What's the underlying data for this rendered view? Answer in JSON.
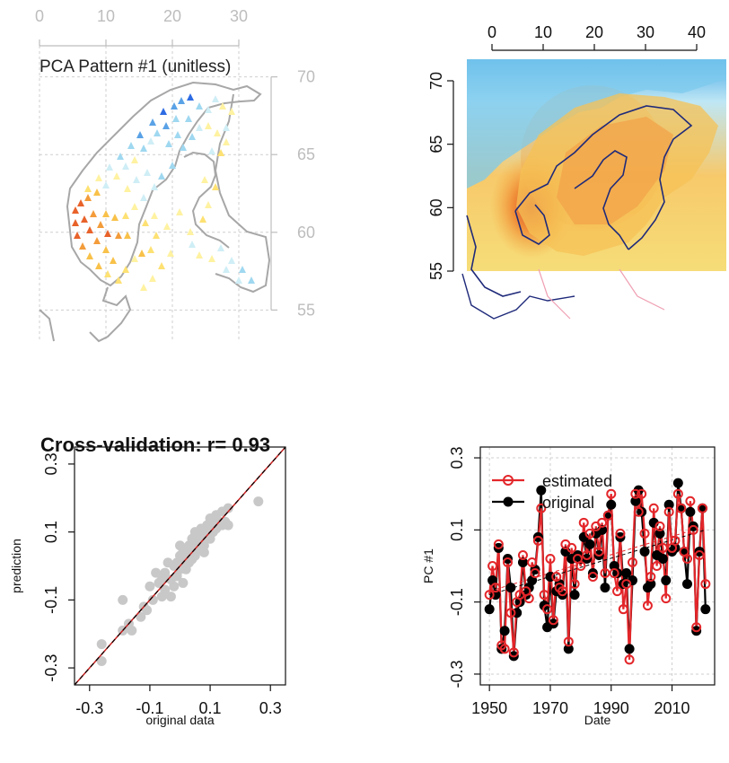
{
  "chart_data": [
    {
      "panel": "top-left",
      "type": "scatter",
      "title": "PCA Pattern #1 (unitless)",
      "x_ticks": [
        "0",
        "10",
        "20",
        "30"
      ],
      "y_ticks": [
        "55",
        "60",
        "65",
        "70"
      ],
      "xlim": [
        0,
        30
      ],
      "ylim": [
        53,
        72
      ],
      "legend": "none",
      "grid": true
    },
    {
      "panel": "top-right",
      "type": "heatmap",
      "x_ticks": [
        "0",
        "10",
        "20",
        "30",
        "40"
      ],
      "y_ticks": [
        "55",
        "60",
        "65",
        "70"
      ],
      "xlim": [
        -5,
        45
      ],
      "ylim": [
        53,
        72
      ],
      "grid": false
    },
    {
      "panel": "bottom-left",
      "type": "scatter",
      "title": "Cross-validation: r= 0.93",
      "xlabel": "original data",
      "ylabel": "prediction",
      "x_ticks": [
        "-0.3",
        "-0.1",
        "0.1",
        "0.3"
      ],
      "y_ticks": [
        "-0.3",
        "-0.1",
        "0.1",
        "0.3"
      ],
      "xlim": [
        -0.35,
        0.35
      ],
      "ylim": [
        -0.35,
        0.35
      ],
      "points": [
        [
          -0.26,
          -0.28
        ],
        [
          -0.26,
          -0.23
        ],
        [
          -0.19,
          -0.19
        ],
        [
          -0.19,
          -0.1
        ],
        [
          -0.17,
          -0.17
        ],
        [
          -0.16,
          -0.19
        ],
        [
          -0.13,
          -0.15
        ],
        [
          -0.12,
          -0.12
        ],
        [
          -0.11,
          -0.13
        ],
        [
          -0.09,
          -0.1
        ],
        [
          -0.08,
          -0.02
        ],
        [
          -0.06,
          -0.09
        ],
        [
          -0.06,
          -0.04
        ],
        [
          -0.05,
          -0.07
        ],
        [
          -0.05,
          -0.02
        ],
        [
          -0.03,
          -0.04
        ],
        [
          -0.03,
          -0.09
        ],
        [
          -0.02,
          0.0
        ],
        [
          -0.02,
          -0.06
        ],
        [
          -0.01,
          0.01
        ],
        [
          -0.01,
          -0.03
        ],
        [
          0.0,
          0.03
        ],
        [
          0.0,
          -0.01
        ],
        [
          0.01,
          0.02
        ],
        [
          0.01,
          0.05
        ],
        [
          0.02,
          0.01
        ],
        [
          0.02,
          -0.01
        ],
        [
          0.03,
          0.04
        ],
        [
          0.03,
          0.06
        ],
        [
          0.04,
          0.02
        ],
        [
          0.04,
          0.08
        ],
        [
          0.05,
          0.06
        ],
        [
          0.05,
          0.03
        ],
        [
          0.06,
          0.09
        ],
        [
          0.06,
          0.05
        ],
        [
          0.07,
          0.08
        ],
        [
          0.07,
          0.11
        ],
        [
          0.08,
          0.06
        ],
        [
          0.08,
          0.1
        ],
        [
          0.09,
          0.09
        ],
        [
          0.09,
          0.12
        ],
        [
          0.1,
          0.08
        ],
        [
          0.1,
          0.14
        ],
        [
          0.11,
          0.12
        ],
        [
          0.11,
          0.1
        ],
        [
          0.12,
          0.11
        ],
        [
          0.12,
          0.15
        ],
        [
          0.13,
          0.13
        ],
        [
          0.14,
          0.12
        ],
        [
          0.14,
          0.16
        ],
        [
          0.15,
          0.13
        ],
        [
          0.16,
          0.17
        ],
        [
          0.16,
          0.12
        ],
        [
          0.03,
          0.01
        ],
        [
          -0.04,
          0.01
        ],
        [
          -0.07,
          -0.05
        ],
        [
          0.0,
          0.06
        ],
        [
          0.05,
          0.1
        ],
        [
          -0.1,
          -0.06
        ],
        [
          0.01,
          -0.05
        ],
        [
          0.08,
          0.04
        ],
        [
          0.26,
          0.19
        ]
      ],
      "reference_line": "y = x",
      "grid": false
    },
    {
      "panel": "bottom-right",
      "type": "line",
      "xlabel": "Date",
      "ylabel": "PC #1",
      "x_ticks": [
        "1950",
        "1970",
        "1990",
        "2010"
      ],
      "y_ticks": [
        "-0.3",
        "-0.1",
        "0.1",
        "0.3"
      ],
      "xlim": [
        1947,
        2024
      ],
      "ylim": [
        -0.33,
        0.33
      ],
      "legend": "top-left",
      "x": [
        1950,
        1951,
        1952,
        1953,
        1954,
        1955,
        1956,
        1957,
        1958,
        1959,
        1960,
        1961,
        1962,
        1963,
        1964,
        1965,
        1966,
        1967,
        1968,
        1969,
        1970,
        1971,
        1972,
        1973,
        1974,
        1975,
        1976,
        1977,
        1978,
        1979,
        1980,
        1981,
        1982,
        1983,
        1984,
        1985,
        1986,
        1987,
        1988,
        1989,
        1990,
        1991,
        1992,
        1993,
        1994,
        1995,
        1996,
        1997,
        1998,
        1999,
        2000,
        2001,
        2002,
        2003,
        2004,
        2005,
        2006,
        2007,
        2008,
        2009,
        2010,
        2011,
        2012,
        2013,
        2014,
        2015,
        2016,
        2017,
        2018,
        2019,
        2020,
        2021
      ],
      "series": [
        {
          "name": "estimated",
          "values": [
            -0.08,
            0.0,
            -0.06,
            0.06,
            -0.22,
            -0.23,
            0.01,
            -0.13,
            -0.24,
            -0.1,
            -0.08,
            0.03,
            -0.07,
            -0.09,
            0.01,
            -0.02,
            0.07,
            0.16,
            -0.08,
            -0.12,
            0.02,
            -0.15,
            -0.03,
            -0.06,
            -0.07,
            0.06,
            -0.21,
            0.05,
            -0.05,
            0.02,
            0.0,
            0.12,
            0.03,
            0.09,
            -0.03,
            0.11,
            0.04,
            0.12,
            -0.02,
            0.14,
            0.2,
            -0.02,
            -0.07,
            0.09,
            -0.12,
            -0.05,
            -0.26,
            0.01,
            0.2,
            0.15,
            0.2,
            0.09,
            -0.11,
            -0.03,
            0.16,
            0.0,
            0.11,
            0.05,
            -0.09,
            0.15,
            0.05,
            0.07,
            0.2,
            0.16,
            0.04,
            0.02,
            0.18,
            0.1,
            -0.17,
            0.03,
            0.16,
            -0.05
          ]
        },
        {
          "name": "original",
          "values": [
            -0.12,
            -0.04,
            -0.08,
            0.05,
            -0.23,
            -0.18,
            0.02,
            -0.06,
            -0.25,
            -0.13,
            -0.1,
            0.01,
            -0.08,
            -0.06,
            -0.04,
            -0.01,
            0.08,
            0.21,
            -0.11,
            -0.17,
            -0.03,
            -0.16,
            -0.07,
            -0.05,
            -0.08,
            0.04,
            -0.23,
            0.02,
            -0.08,
            0.03,
            0.02,
            0.08,
            0.02,
            0.06,
            -0.02,
            0.09,
            0.03,
            0.1,
            -0.06,
            0.14,
            0.17,
            0.0,
            -0.02,
            0.08,
            -0.05,
            -0.02,
            -0.23,
            -0.04,
            0.18,
            0.21,
            0.15,
            0.04,
            -0.06,
            -0.05,
            0.12,
            0.03,
            0.09,
            0.02,
            -0.04,
            0.17,
            0.04,
            0.05,
            0.23,
            0.16,
            0.04,
            -0.05,
            0.15,
            0.11,
            -0.18,
            0.04,
            0.16,
            -0.12
          ]
        }
      ],
      "grid": true
    }
  ],
  "colors": {
    "estimated": "#e3262a",
    "original": "#000000",
    "scatter_points": "#c8c8c8",
    "grid": "#cfcfcf",
    "coast_gray": "#a7a7a7",
    "coast_navy": "#1f2a7a",
    "border_pink": "#ef9fb2"
  }
}
